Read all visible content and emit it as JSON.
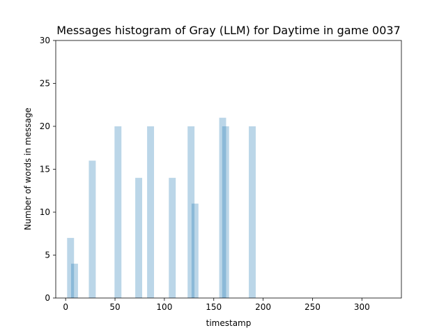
{
  "chart_data": {
    "type": "bar",
    "title": "Messages histogram of Gray (LLM) for Daytime in game 0037",
    "xlabel": "timestamp",
    "ylabel": "Number of words in message",
    "xlim": [
      -10,
      340
    ],
    "ylim": [
      0,
      30
    ],
    "xticks": [
      0,
      50,
      100,
      150,
      200,
      250,
      300
    ],
    "yticks": [
      0,
      5,
      10,
      15,
      20,
      25,
      30
    ],
    "bar_width": 7,
    "bar_color": "#1f77b4",
    "bar_alpha": 0.3,
    "grid": false,
    "legend": false,
    "bars": [
      {
        "x": 5,
        "value": 7
      },
      {
        "x": 9,
        "value": 4
      },
      {
        "x": 27,
        "value": 16
      },
      {
        "x": 53,
        "value": 20
      },
      {
        "x": 74,
        "value": 14
      },
      {
        "x": 86,
        "value": 20
      },
      {
        "x": 108,
        "value": 14
      },
      {
        "x": 127,
        "value": 20
      },
      {
        "x": 131,
        "value": 11
      },
      {
        "x": 159,
        "value": 21
      },
      {
        "x": 162,
        "value": 20
      },
      {
        "x": 189,
        "value": 20
      }
    ]
  }
}
